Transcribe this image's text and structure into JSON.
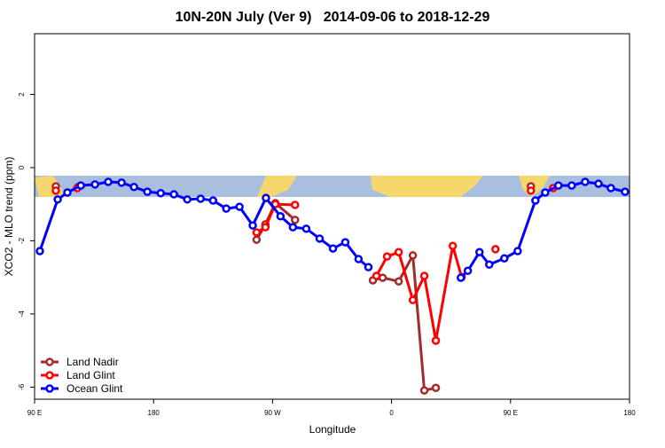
{
  "chart_data": {
    "type": "line",
    "title": "10N-20N July (Ver 9)   2014-09-06 to 2018-12-29",
    "x_label": "Longitude",
    "y_label": "XCO2 - MLO trend (ppm)",
    "xlim": [
      90,
      540
    ],
    "ylim": [
      -6.33,
      3.66
    ],
    "xticks": [
      {
        "value": 90,
        "label": "90 E"
      },
      180,
      {
        "value": 270,
        "label": "90 W"
      },
      {
        "value": 360,
        "label": "0"
      },
      {
        "value": 450,
        "label": "90 E"
      },
      {
        "value": 540,
        "label": "180"
      }
    ],
    "yticks": [
      -6,
      -4,
      -2,
      0,
      2
    ],
    "legend": "bottom-left",
    "series": [
      {
        "name": "Land Nadir",
        "color": "#a52a2a",
        "x": [
          106.1,
          null,
          122.9,
          null,
          257.9,
          264.6,
          272.1,
          287,
          null,
          345.9,
          353.3,
          365.4,
          376.1,
          384.8,
          393.5,
          null,
          465.4
        ],
        "values": [
          -0.51,
          null,
          -0.53,
          null,
          -1.97,
          -1.55,
          -0.97,
          -1.43,
          null,
          -3.08,
          -3.01,
          -3.11,
          -2.4,
          -6.09,
          -6.02,
          null,
          -0.51
        ]
      },
      {
        "name": "Land Glint",
        "color": "#ff0000",
        "x": [
          106.1,
          null,
          122.2,
          null,
          257.9,
          264.6,
          272.1,
          287,
          null,
          348.6,
          356.6,
          365.4,
          376.1,
          384.8,
          393.5,
          406.3,
          413,
          null,
          438.6,
          null,
          465.4,
          null,
          482.2
        ],
        "values": [
          -0.63,
          null,
          -0.56,
          null,
          -1.77,
          -1.63,
          -1.0,
          -1.02,
          null,
          -2.96,
          -2.43,
          -2.31,
          -3.62,
          -2.96,
          -4.73,
          -2.14,
          -2.99,
          null,
          -2.23,
          null,
          -0.63,
          null,
          -0.56
        ]
      },
      {
        "name": "Ocean Glint",
        "color": "#0000ff",
        "x": [
          94,
          107.5,
          114.8,
          125,
          135.7,
          145.7,
          155.8,
          165.2,
          175.3,
          185.4,
          195.4,
          205.5,
          215.6,
          225,
          235,
          245,
          255,
          265,
          276,
          285.4,
          295.5,
          305.6,
          315.7,
          325,
          335,
          342.5,
          null,
          412.4,
          417.7,
          426.5,
          433.9,
          445.3,
          455.4,
          468.8,
          476.2,
          486.2,
          496.3,
          506.4,
          516.5,
          525.9,
          536.6
        ],
        "values": [
          -2.28,
          -0.87,
          -0.68,
          -0.49,
          -0.46,
          -0.39,
          -0.41,
          -0.53,
          -0.66,
          -0.7,
          -0.73,
          -0.87,
          -0.85,
          -0.9,
          -1.12,
          -1.07,
          -1.58,
          -0.83,
          -1.33,
          -1.63,
          -1.67,
          -1.94,
          -2.21,
          -2.04,
          -2.5,
          -2.72,
          null,
          -3.01,
          -2.82,
          -2.31,
          -2.65,
          -2.48,
          -2.28,
          -0.9,
          -0.68,
          -0.49,
          -0.49,
          -0.39,
          -0.44,
          -0.56,
          -0.66
        ]
      }
    ]
  }
}
